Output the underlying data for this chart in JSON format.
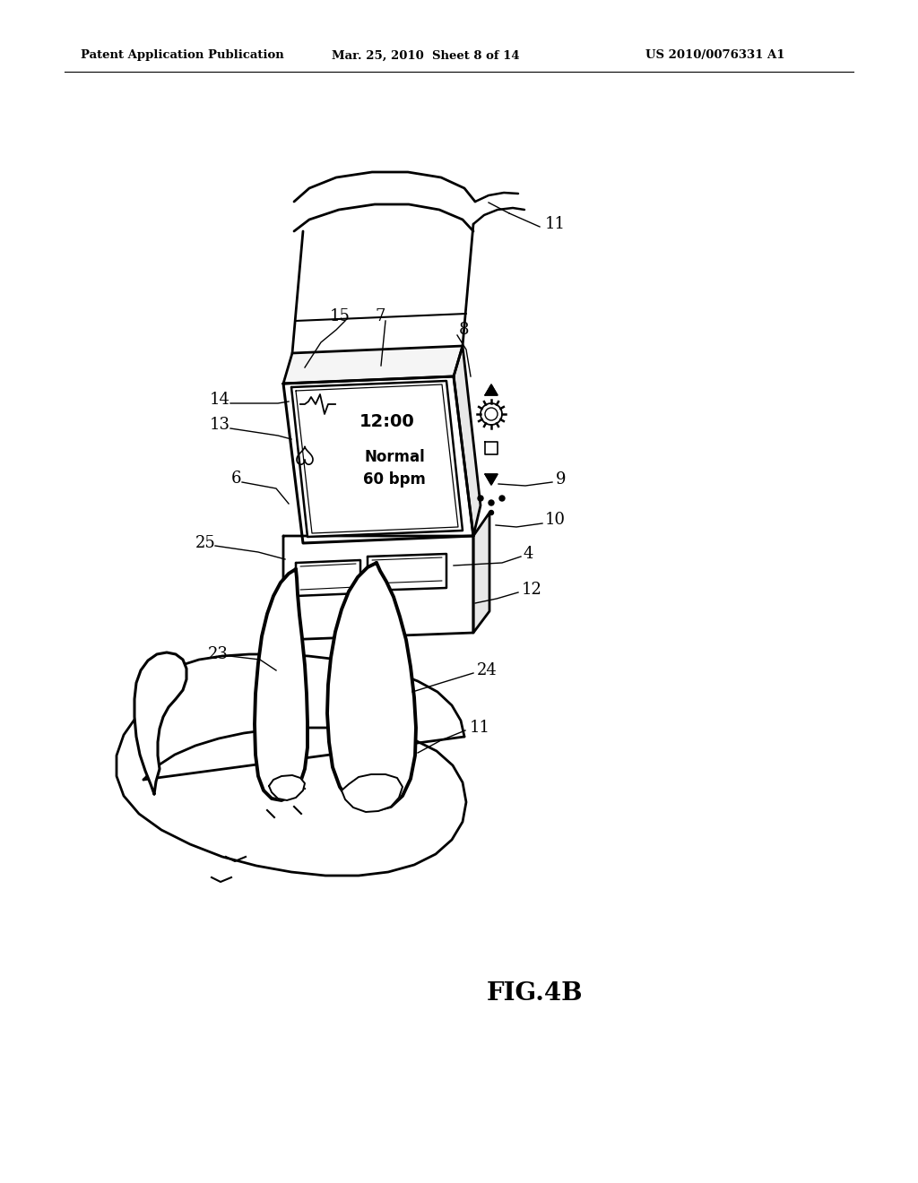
{
  "header_left": "Patent Application Publication",
  "header_mid": "Mar. 25, 2010  Sheet 8 of 14",
  "header_right": "US 2010/0076331 A1",
  "figure_label": "FIG.4B",
  "bg_color": "#ffffff",
  "line_color": "#000000"
}
